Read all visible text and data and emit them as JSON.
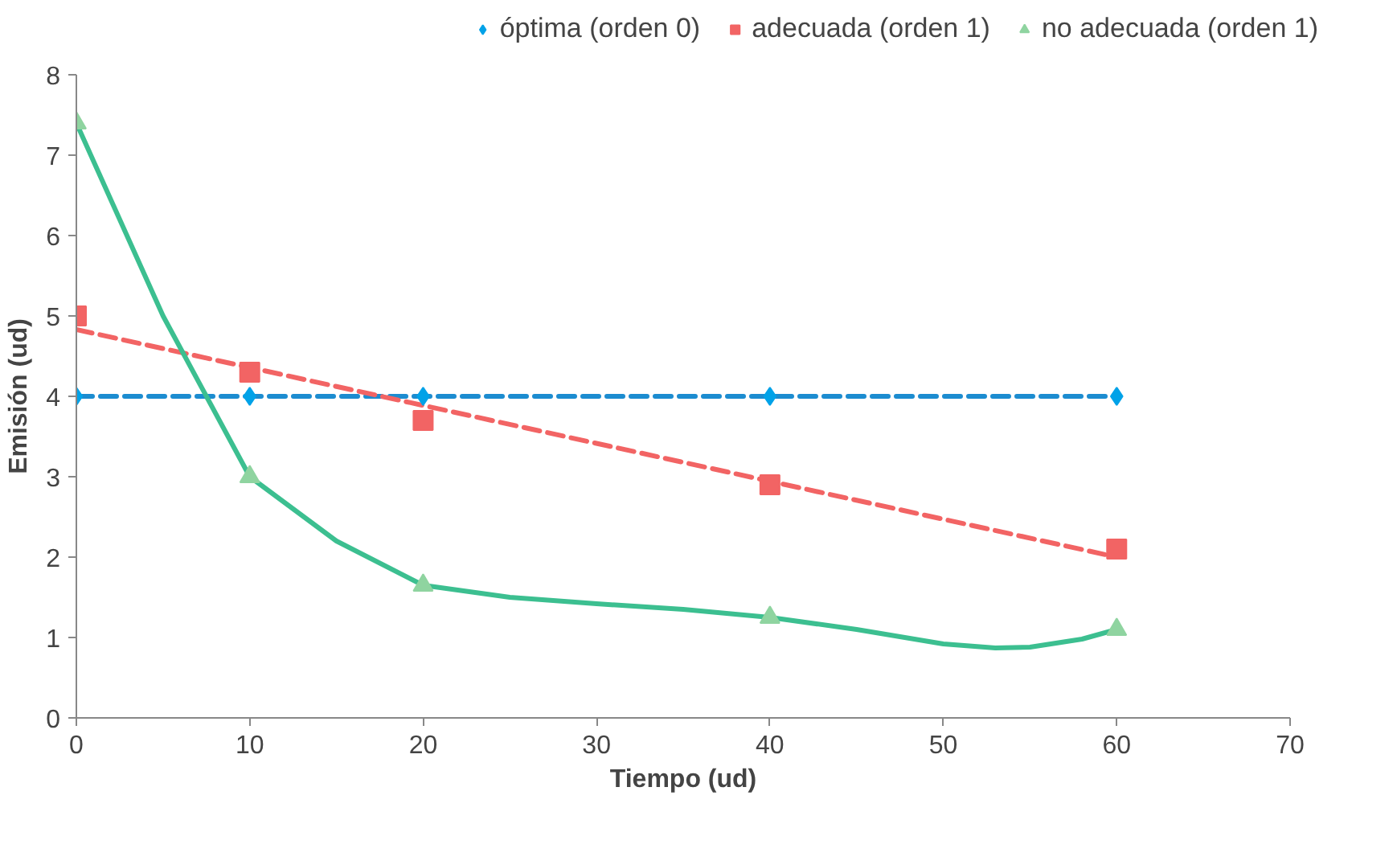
{
  "chart_data": {
    "type": "scatter",
    "xlabel": "Tiempo (ud)",
    "ylabel": "Emisión (ud)",
    "xlim": [
      0,
      70
    ],
    "ylim": [
      0,
      8
    ],
    "xticks": [
      0,
      10,
      20,
      30,
      40,
      50,
      60,
      70
    ],
    "yticks": [
      0,
      1,
      2,
      3,
      4,
      5,
      6,
      7,
      8
    ],
    "grid": false,
    "legend": "top",
    "x": [
      0,
      10,
      20,
      40,
      60
    ],
    "series": [
      {
        "name": "óptima (orden 0)",
        "color": "#00a2e8",
        "marker": "diamond",
        "values": [
          4,
          4,
          4,
          4,
          4
        ]
      },
      {
        "name": "adecuada (orden 1)",
        "color": "#f26464",
        "marker": "square",
        "values": [
          5,
          4.3,
          3.7,
          2.9,
          2.1
        ]
      },
      {
        "name": "no adecuada (orden 1)",
        "color": "#8fd4a0",
        "marker": "triangle",
        "values": [
          7.4,
          3.0,
          1.65,
          1.25,
          1.1
        ]
      },
      {
        "type": "line",
        "color": "#1c8cd0",
        "marker": "none",
        "line_style": "dashed",
        "x": [
          0,
          60
        ],
        "values": [
          4,
          4
        ]
      },
      {
        "type": "line",
        "color": "#f26464",
        "marker": "none",
        "line_style": "dashed",
        "x": [
          0,
          60
        ],
        "values": [
          4.83,
          2.0
        ]
      },
      {
        "type": "line",
        "color": "#3cbf90",
        "marker": "none",
        "line_style": "solid",
        "x": [
          0,
          5,
          10,
          15,
          20,
          25,
          30,
          35,
          40,
          45,
          50,
          53,
          55,
          58,
          60
        ],
        "values": [
          7.4,
          5.0,
          3.0,
          2.2,
          1.65,
          1.5,
          1.42,
          1.35,
          1.25,
          1.1,
          0.92,
          0.87,
          0.88,
          0.98,
          1.1
        ]
      }
    ]
  }
}
